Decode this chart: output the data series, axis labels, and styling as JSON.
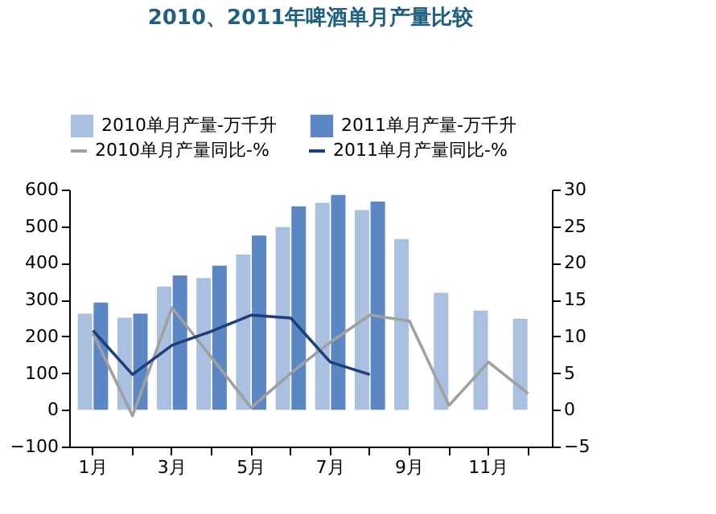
{
  "chart_data": {
    "type": "bar",
    "title": "2010、2011年啤酒单月产量比较",
    "categories": [
      "1月",
      null,
      "3月",
      null,
      "5月",
      null,
      "7月",
      null,
      "9月",
      null,
      "11月",
      null
    ],
    "series": [
      {
        "name": "2010单月产量-万千升",
        "color": "#a9c0e0",
        "values": [
          262,
          251,
          336,
          359,
          423,
          498,
          564,
          544,
          465,
          319,
          270,
          248
        ]
      },
      {
        "name": "2011单月产量-万千升",
        "color": "#5b87c5",
        "values": [
          292,
          262,
          366,
          393,
          475,
          554,
          585,
          567,
          null,
          null,
          null,
          null
        ]
      },
      {
        "name": "2010单月产量同比-%",
        "type": "line",
        "axis": "y2",
        "color": "#a0a0a0",
        "values": [
          10.4,
          -0.8,
          13.9,
          7.1,
          0.3,
          5.0,
          9.2,
          12.9,
          12.1,
          0.6,
          6.5,
          2.2
        ]
      },
      {
        "name": "2011单月产量同比-%",
        "type": "line",
        "axis": "y2",
        "color": "#1f3f7a",
        "values": [
          10.8,
          4.8,
          8.8,
          10.7,
          12.9,
          12.5,
          6.5,
          4.8,
          null,
          null,
          null,
          null
        ]
      }
    ],
    "ylim": [
      -100,
      600
    ],
    "yticks": [
      -100,
      0,
      100,
      200,
      300,
      400,
      500,
      600
    ],
    "y2lim": [
      -5,
      30
    ],
    "y2ticks": [
      -5,
      0,
      5,
      10,
      15,
      20,
      25,
      30
    ],
    "legend": "top",
    "grid": false
  }
}
